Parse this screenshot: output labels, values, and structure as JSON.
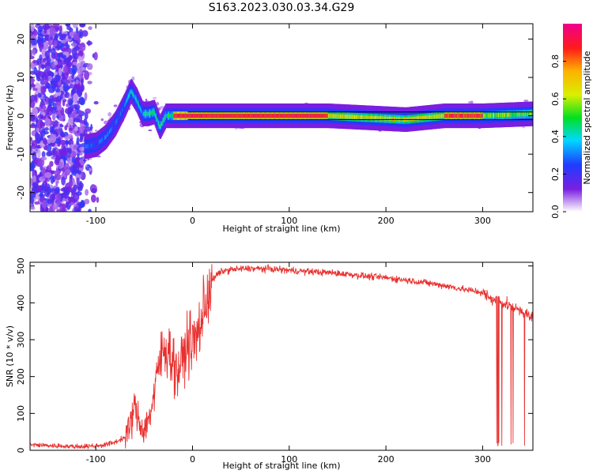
{
  "figure_title": "S163.2023.030.03.34.G29",
  "colors": {
    "snr_line": "#e8312f",
    "band_line": "#000000"
  },
  "chart_data": [
    {
      "type": "heatmap",
      "xlabel": "Height of straight line (km)",
      "ylabel": "Frequency (Hz)",
      "xlim": [
        -168,
        352
      ],
      "ylim": [
        -25,
        24
      ],
      "xticks": [
        -100,
        0,
        100,
        200,
        300
      ],
      "yticks": [
        -20,
        -10,
        0,
        10,
        20
      ],
      "colorbar": {
        "label": "Normalized spectral amplitude",
        "range": [
          0,
          1
        ],
        "ticks": [
          0.0,
          0.2,
          0.4,
          0.6,
          0.8
        ],
        "colormap": "rainbow (purple-blue-cyan-green-yellow-red-magenta)"
      },
      "band_lines_hz": [
        -1,
        1
      ],
      "ridge": {
        "x": [
          -110,
          -100,
          -90,
          -80,
          -70,
          -64,
          -58,
          -52,
          -46,
          -40,
          -34,
          -28,
          -20,
          -10,
          0,
          20,
          60,
          100,
          140,
          180,
          220,
          260,
          300,
          350
        ],
        "f": [
          -8,
          -7.5,
          -5.5,
          -2,
          3,
          6.5,
          4,
          0.5,
          0.5,
          1,
          -3,
          0,
          0,
          0,
          0,
          0,
          0,
          0,
          0,
          -0.5,
          -1,
          0,
          0,
          0.5
        ]
      }
    },
    {
      "type": "line",
      "xlabel": "Height of straight line (km)",
      "ylabel": "SNR (10 * v/v)",
      "xlim": [
        -168,
        352
      ],
      "ylim": [
        0,
        510
      ],
      "xticks": [
        -100,
        0,
        100,
        200,
        300
      ],
      "yticks": [
        0,
        100,
        200,
        300,
        400,
        500
      ],
      "series": [
        {
          "x": [
            -168,
            -140,
            -120,
            -100,
            -90,
            -80,
            -70,
            -65,
            -60,
            -55,
            -50,
            -45,
            -40,
            -35,
            -30,
            -25,
            -20,
            -15,
            -10,
            -5,
            0,
            5,
            10,
            15,
            20,
            25,
            30,
            40,
            50,
            60,
            80,
            100,
            120,
            140,
            160,
            180,
            200,
            220,
            240,
            260,
            280,
            300,
            304,
            310,
            320,
            330,
            340,
            350
          ],
          "y": [
            15,
            12,
            10,
            12,
            15,
            22,
            35,
            60,
            120,
            75,
            55,
            90,
            140,
            230,
            270,
            280,
            240,
            210,
            250,
            290,
            290,
            310,
            360,
            420,
            460,
            475,
            485,
            490,
            492,
            493,
            492,
            488,
            485,
            482,
            478,
            472,
            468,
            462,
            455,
            447,
            437,
            428,
            420,
            410,
            400,
            390,
            380,
            360
          ]
        }
      ]
    }
  ]
}
